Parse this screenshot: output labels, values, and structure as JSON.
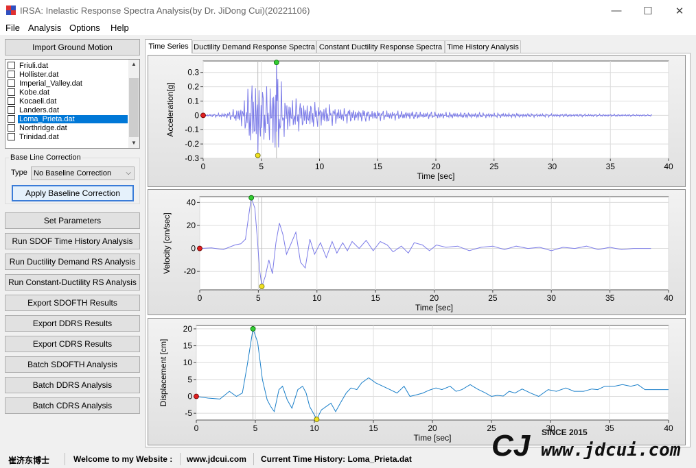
{
  "window": {
    "title": "IRSA: Inelastic Response Spectra Analysis(by Dr. JiDong Cui)(20221106)",
    "minimize_glyph": "—",
    "maximize_glyph": "☐",
    "close_glyph": "✕"
  },
  "menu": [
    "File",
    "Analysis",
    "Options",
    "Help"
  ],
  "left_panel": {
    "import_label": "Import Ground Motion",
    "files": [
      {
        "name": "Friuli.dat",
        "checked": false,
        "selected": false
      },
      {
        "name": "Hollister.dat",
        "checked": false,
        "selected": false
      },
      {
        "name": "Imperial_Valley.dat",
        "checked": false,
        "selected": false
      },
      {
        "name": "Kobe.dat",
        "checked": false,
        "selected": false
      },
      {
        "name": "Kocaeli.dat",
        "checked": false,
        "selected": false
      },
      {
        "name": "Landers.dat",
        "checked": false,
        "selected": false
      },
      {
        "name": "Loma_Prieta.dat",
        "checked": false,
        "selected": true
      },
      {
        "name": "Northridge.dat",
        "checked": false,
        "selected": false
      },
      {
        "name": "Trinidad.dat",
        "checked": false,
        "selected": false
      }
    ],
    "baseline_group": "Base Line Correction",
    "type_label": "Type",
    "type_value": "No Baseline Correction",
    "apply_label": "Apply Baseline Correction",
    "actions": [
      "Set Parameters",
      "Run SDOF Time History Analysis",
      "Run Ductility Demand RS Analysis",
      "Run Constant-Ductility RS Analysis",
      "Export SDOFTH Results",
      "Export DDRS Results",
      "Export CDRS Results",
      "Batch SDOFTH Analysis",
      "Batch DDRS Analysis",
      "Batch CDRS Analysis"
    ]
  },
  "tabs": [
    {
      "label": "Time Series",
      "active": true
    },
    {
      "label": "Ductility Demand Response Spectra",
      "active": false
    },
    {
      "label": "Constant Ductility Response Spectra",
      "active": false
    },
    {
      "label": "Time History Analysis",
      "active": false
    }
  ],
  "chart_data": [
    {
      "type": "line",
      "xlabel": "Time [sec]",
      "ylabel": "Acceleration[g]",
      "xlim": [
        0,
        40
      ],
      "ylim": [
        -0.3,
        0.38
      ],
      "xticks": [
        0,
        5,
        10,
        15,
        20,
        25,
        30,
        35,
        40
      ],
      "yticks": [
        -0.3,
        -0.2,
        -0.1,
        0,
        0.1,
        0.2,
        0.3
      ],
      "ytick_labels": [
        "-0.3",
        "-0.2",
        "-0.1",
        "0",
        "0.1",
        "0.2",
        "0.3"
      ],
      "grid": true,
      "color": "#7b7be8",
      "duration": 38.6,
      "start_marker": [
        0,
        0
      ],
      "max_marker": [
        6.3,
        0.37
      ],
      "min_marker": [
        4.7,
        -0.28
      ],
      "envelope": [
        [
          0,
          0.005
        ],
        [
          2,
          0.02
        ],
        [
          3,
          0.06
        ],
        [
          3.7,
          0.15
        ],
        [
          4.3,
          0.3
        ],
        [
          4.8,
          0.25
        ],
        [
          5.5,
          0.2
        ],
        [
          6.3,
          0.37
        ],
        [
          7,
          0.15
        ],
        [
          8,
          0.12
        ],
        [
          10,
          0.09
        ],
        [
          12,
          0.06
        ],
        [
          15,
          0.04
        ],
        [
          20,
          0.025
        ],
        [
          25,
          0.018
        ],
        [
          30,
          0.012
        ],
        [
          38.6,
          0.006
        ]
      ]
    },
    {
      "type": "line",
      "xlabel": "Time [sec]",
      "ylabel": "Velocity [cm/sec]",
      "xlim": [
        0,
        40
      ],
      "ylim": [
        -36,
        45
      ],
      "xticks": [
        0,
        5,
        10,
        15,
        20,
        25,
        30,
        35,
        40
      ],
      "yticks": [
        -20,
        0,
        20,
        40
      ],
      "ytick_labels": [
        "-20",
        "0",
        "20",
        "40"
      ],
      "grid": true,
      "color": "#7b7be8",
      "start_marker": [
        0,
        0
      ],
      "max_marker": [
        4.4,
        44
      ],
      "min_marker": [
        5.3,
        -33
      ],
      "points": [
        [
          0,
          0
        ],
        [
          1,
          0.5
        ],
        [
          2,
          -1
        ],
        [
          3,
          3
        ],
        [
          3.5,
          4
        ],
        [
          3.9,
          8
        ],
        [
          4.2,
          30
        ],
        [
          4.4,
          44
        ],
        [
          4.7,
          35
        ],
        [
          4.9,
          10
        ],
        [
          5.1,
          -18
        ],
        [
          5.3,
          -33
        ],
        [
          5.6,
          -24
        ],
        [
          5.9,
          -10
        ],
        [
          6.2,
          -22
        ],
        [
          6.5,
          5
        ],
        [
          6.8,
          22
        ],
        [
          7.1,
          12
        ],
        [
          7.4,
          -5
        ],
        [
          7.7,
          2
        ],
        [
          8.2,
          14
        ],
        [
          8.6,
          -12
        ],
        [
          9,
          -17
        ],
        [
          9.4,
          8
        ],
        [
          9.8,
          -5
        ],
        [
          10.3,
          5
        ],
        [
          10.8,
          -8
        ],
        [
          11.3,
          6
        ],
        [
          11.7,
          -4
        ],
        [
          12.2,
          5
        ],
        [
          12.6,
          -2
        ],
        [
          13,
          6
        ],
        [
          13.6,
          0
        ],
        [
          14.2,
          7
        ],
        [
          14.8,
          -2
        ],
        [
          15.4,
          6
        ],
        [
          16,
          3
        ],
        [
          16.5,
          -3
        ],
        [
          17.2,
          2
        ],
        [
          17.8,
          -4
        ],
        [
          18.3,
          5
        ],
        [
          19,
          3
        ],
        [
          19.6,
          -2
        ],
        [
          20.2,
          3
        ],
        [
          21,
          1
        ],
        [
          22,
          2
        ],
        [
          23,
          -2
        ],
        [
          24,
          1
        ],
        [
          25,
          2
        ],
        [
          26,
          -1
        ],
        [
          27,
          2
        ],
        [
          28,
          0
        ],
        [
          29,
          1
        ],
        [
          30,
          -2
        ],
        [
          31,
          1
        ],
        [
          32,
          0
        ],
        [
          33,
          2
        ],
        [
          34,
          -1
        ],
        [
          35,
          1
        ],
        [
          36,
          -1
        ],
        [
          37,
          0
        ],
        [
          38.5,
          0
        ]
      ]
    },
    {
      "type": "line",
      "xlabel": "Time [sec]",
      "ylabel": "Displacement [cm]",
      "xlim": [
        0,
        40
      ],
      "ylim": [
        -7,
        21
      ],
      "xticks": [
        0,
        5,
        10,
        15,
        20,
        25,
        30,
        35,
        40
      ],
      "yticks": [
        -5,
        0,
        5,
        10,
        15,
        20
      ],
      "ytick_labels": [
        "-5",
        "0",
        "5",
        "10",
        "15",
        "20"
      ],
      "grid": true,
      "color": "#1a7fc9",
      "start_marker": [
        0,
        0
      ],
      "max_marker": [
        4.8,
        20
      ],
      "min_marker": [
        10.2,
        -6.8
      ],
      "points": [
        [
          0,
          0
        ],
        [
          1,
          -0.5
        ],
        [
          2,
          -0.8
        ],
        [
          2.8,
          1.5
        ],
        [
          3.4,
          0
        ],
        [
          3.9,
          1
        ],
        [
          4.3,
          9
        ],
        [
          4.8,
          20
        ],
        [
          5.2,
          16
        ],
        [
          5.6,
          5
        ],
        [
          6,
          -1
        ],
        [
          6.3,
          -3
        ],
        [
          6.6,
          -4.5
        ],
        [
          7,
          2
        ],
        [
          7.3,
          3
        ],
        [
          7.7,
          -1
        ],
        [
          8.1,
          -3.5
        ],
        [
          8.6,
          2
        ],
        [
          9,
          3
        ],
        [
          9.3,
          1
        ],
        [
          9.6,
          -3
        ],
        [
          10,
          -5.5
        ],
        [
          10.2,
          -6.8
        ],
        [
          10.6,
          -4
        ],
        [
          11,
          -3
        ],
        [
          11.4,
          -2
        ],
        [
          11.8,
          -4.5
        ],
        [
          12.2,
          -2
        ],
        [
          12.7,
          1
        ],
        [
          13.1,
          2.5
        ],
        [
          13.6,
          2
        ],
        [
          14,
          4
        ],
        [
          14.6,
          5.5
        ],
        [
          15.2,
          4
        ],
        [
          15.8,
          3
        ],
        [
          16.4,
          2
        ],
        [
          17,
          1
        ],
        [
          17.6,
          3
        ],
        [
          18.1,
          0
        ],
        [
          18.7,
          0.5
        ],
        [
          19.2,
          1
        ],
        [
          19.7,
          1.8
        ],
        [
          20.3,
          2.5
        ],
        [
          20.8,
          2
        ],
        [
          21.5,
          3
        ],
        [
          22,
          1.5
        ],
        [
          22.5,
          2
        ],
        [
          23.2,
          3.5
        ],
        [
          23.8,
          2.2
        ],
        [
          24.5,
          1
        ],
        [
          25,
          0
        ],
        [
          25.5,
          0.3
        ],
        [
          26,
          0.1
        ],
        [
          26.5,
          1.5
        ],
        [
          27,
          1
        ],
        [
          27.6,
          2.2
        ],
        [
          28.3,
          1
        ],
        [
          29,
          0
        ],
        [
          29.8,
          2
        ],
        [
          30.5,
          1.5
        ],
        [
          31.3,
          2.5
        ],
        [
          32,
          1.5
        ],
        [
          32.8,
          1.5
        ],
        [
          33.5,
          2.2
        ],
        [
          34,
          2
        ],
        [
          34.6,
          3
        ],
        [
          35.4,
          3
        ],
        [
          36.1,
          3.5
        ],
        [
          36.8,
          3
        ],
        [
          37.4,
          3.5
        ],
        [
          38,
          2
        ],
        [
          39,
          2
        ],
        [
          40,
          2
        ]
      ]
    }
  ],
  "status": {
    "author": "崔济东博士",
    "welcome": "Welcome to my Website :",
    "website": "www.jdcui.com",
    "current": "Current Time History: Loma_Prieta.dat"
  },
  "watermark": {
    "mark": "CJ",
    "since": "SINCE 2015",
    "url": "www.jdcui.com"
  }
}
